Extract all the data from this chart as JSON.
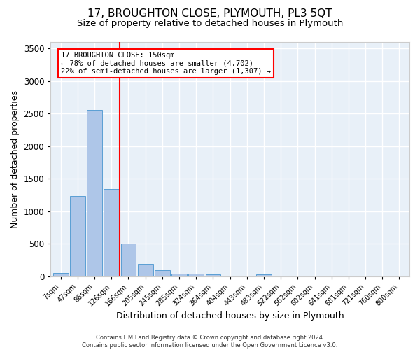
{
  "title1": "17, BROUGHTON CLOSE, PLYMOUTH, PL3 5QT",
  "title2": "Size of property relative to detached houses in Plymouth",
  "xlabel": "Distribution of detached houses by size in Plymouth",
  "ylabel": "Number of detached properties",
  "bar_labels": [
    "7sqm",
    "47sqm",
    "86sqm",
    "126sqm",
    "166sqm",
    "205sqm",
    "245sqm",
    "285sqm",
    "324sqm",
    "364sqm",
    "404sqm",
    "443sqm",
    "483sqm",
    "522sqm",
    "562sqm",
    "602sqm",
    "641sqm",
    "681sqm",
    "721sqm",
    "760sqm",
    "800sqm"
  ],
  "bar_values": [
    50,
    1230,
    2560,
    1340,
    500,
    190,
    100,
    45,
    40,
    30,
    0,
    0,
    35,
    0,
    0,
    0,
    0,
    0,
    0,
    0,
    0
  ],
  "bar_color": "#aec6e8",
  "bar_edge_color": "#5a9fd4",
  "vline_color": "red",
  "annotation_text": "17 BROUGHTON CLOSE: 150sqm\n← 78% of detached houses are smaller (4,702)\n22% of semi-detached houses are larger (1,307) →",
  "annotation_box_color": "white",
  "annotation_box_edge": "red",
  "ylim": [
    0,
    3600
  ],
  "yticks": [
    0,
    500,
    1000,
    1500,
    2000,
    2500,
    3000,
    3500
  ],
  "background_color": "#e8f0f8",
  "footer": "Contains HM Land Registry data © Crown copyright and database right 2024.\nContains public sector information licensed under the Open Government Licence v3.0.",
  "title1_fontsize": 11,
  "title2_fontsize": 9.5,
  "xlabel_fontsize": 9,
  "ylabel_fontsize": 9
}
